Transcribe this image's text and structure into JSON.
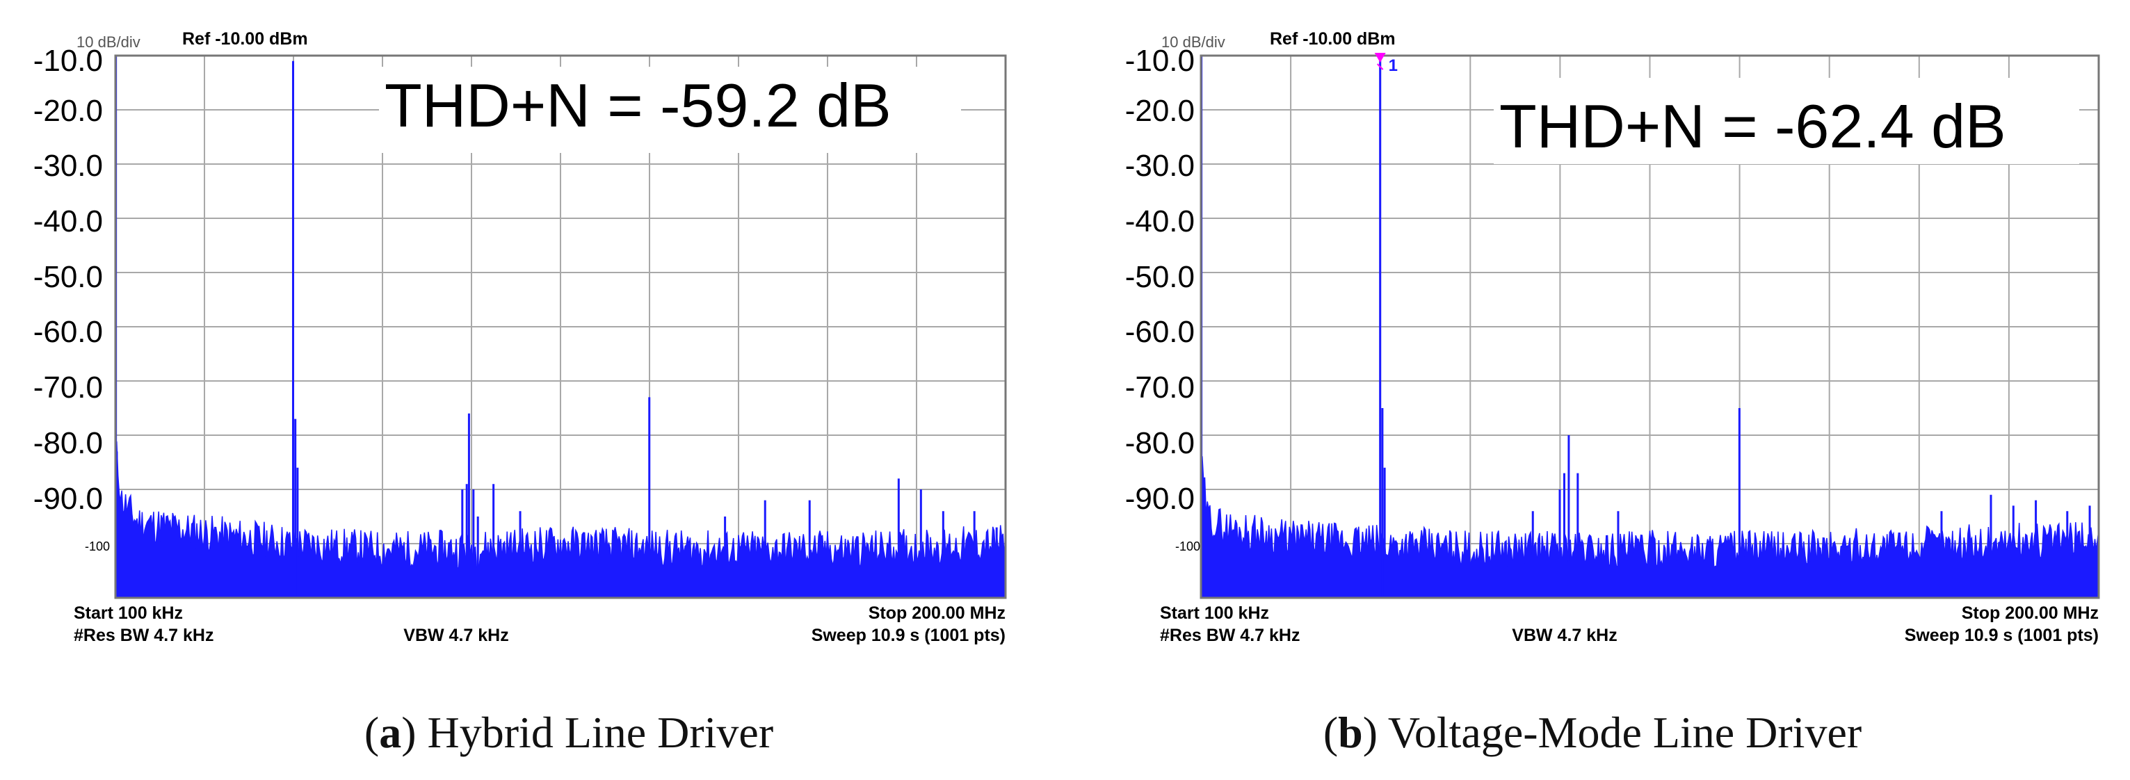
{
  "colors": {
    "trace": "#1a1aff",
    "grid": "#a8a8a8",
    "frame": "#777777",
    "marker": "#ff00ff",
    "text": "#000000"
  },
  "chart_data": [
    {
      "type": "line",
      "panel_letter": "a",
      "caption_text": " Hybrid Line Driver",
      "annotation": "THD+N = -59.2 dB",
      "scale_label": "10 dB/div",
      "ref_label": "Ref -10.00 dBm",
      "ylim": [
        -110,
        -10
      ],
      "xlim": [
        0.1,
        200
      ],
      "x_unit": "MHz",
      "y_unit": "dBm",
      "ytick_labels": [
        "-10.0",
        "-20.0",
        "-30.0",
        "-40.0",
        "-50.0",
        "-60.0",
        "-70.0",
        "-80.0",
        "-90.0",
        "-100"
      ],
      "ytick_values": [
        -10,
        -20,
        -30,
        -40,
        -50,
        -60,
        -70,
        -80,
        -90,
        -100
      ],
      "grid": true,
      "footer": {
        "start": "Start 100 kHz",
        "stop": "Stop 200.00 MHz",
        "rbw": "#Res BW 4.7 kHz",
        "vbw": "VBW 4.7 kHz",
        "sweep": "Sweep  10.9 s (1001 pts)"
      },
      "noise_floor": [
        [
          0.1,
          -82
        ],
        [
          1.5,
          -92
        ],
        [
          5,
          -96
        ],
        [
          20,
          -98
        ],
        [
          40,
          -100
        ],
        [
          60,
          -101
        ],
        [
          80,
          -101
        ],
        [
          100,
          -100
        ],
        [
          130,
          -101
        ],
        [
          170,
          -101
        ],
        [
          200,
          -100
        ]
      ],
      "peaks": [
        {
          "x": 0.2,
          "y": -10
        },
        {
          "x": 0.4,
          "y": -83
        },
        {
          "x": 40,
          "y": -11
        },
        {
          "x": 40.5,
          "y": -77
        },
        {
          "x": 41,
          "y": -86
        },
        {
          "x": 78,
          "y": -90
        },
        {
          "x": 79,
          "y": -89
        },
        {
          "x": 79.5,
          "y": -76
        },
        {
          "x": 80.5,
          "y": -90
        },
        {
          "x": 81.5,
          "y": -95
        },
        {
          "x": 85,
          "y": -89
        },
        {
          "x": 91,
          "y": -94
        },
        {
          "x": 120,
          "y": -73
        },
        {
          "x": 137,
          "y": -95
        },
        {
          "x": 146,
          "y": -92
        },
        {
          "x": 156,
          "y": -92
        },
        {
          "x": 176,
          "y": -88
        },
        {
          "x": 181,
          "y": -90
        },
        {
          "x": 186,
          "y": -94
        },
        {
          "x": 193,
          "y": -94
        },
        {
          "x": 198,
          "y": -97
        }
      ]
    },
    {
      "type": "line",
      "panel_letter": "b",
      "caption_text": " Voltage-Mode Line Driver",
      "annotation": "THD+N = -62.4 dB",
      "scale_label": "10 dB/div",
      "ref_label": "Ref -10.00 dBm",
      "marker_label": "1",
      "marker": {
        "x": 40,
        "y": -10
      },
      "ylim": [
        -110,
        -10
      ],
      "xlim": [
        0.1,
        200
      ],
      "x_unit": "MHz",
      "y_unit": "dBm",
      "ytick_labels": [
        "-10.0",
        "-20.0",
        "-30.0",
        "-40.0",
        "-50.0",
        "-60.0",
        "-70.0",
        "-80.0",
        "-90.0",
        "-100"
      ],
      "ytick_values": [
        -10,
        -20,
        -30,
        -40,
        -50,
        -60,
        -70,
        -80,
        -90,
        -100
      ],
      "grid": true,
      "footer": {
        "start": "Start 100 kHz",
        "stop": "Stop 200.00 MHz",
        "rbw": "#Res BW 4.7 kHz",
        "vbw": "VBW 4.7 kHz",
        "sweep": "Sweep  10.9 s (1001 pts)"
      },
      "noise_floor": [
        [
          0.1,
          -85
        ],
        [
          1.5,
          -95
        ],
        [
          5,
          -97
        ],
        [
          20,
          -99
        ],
        [
          40,
          -100
        ],
        [
          60,
          -101
        ],
        [
          80,
          -101
        ],
        [
          100,
          -101
        ],
        [
          130,
          -101
        ],
        [
          170,
          -100
        ],
        [
          200,
          -99
        ]
      ],
      "peaks": [
        {
          "x": 0.2,
          "y": -10
        },
        {
          "x": 0.4,
          "y": -88
        },
        {
          "x": 40,
          "y": -10
        },
        {
          "x": 40.5,
          "y": -75
        },
        {
          "x": 41,
          "y": -86
        },
        {
          "x": 80,
          "y": -90
        },
        {
          "x": 81,
          "y": -87
        },
        {
          "x": 82,
          "y": -80
        },
        {
          "x": 84,
          "y": -87
        },
        {
          "x": 74,
          "y": -94
        },
        {
          "x": 93,
          "y": -94
        },
        {
          "x": 120,
          "y": -75
        },
        {
          "x": 165,
          "y": -94
        },
        {
          "x": 176,
          "y": -91
        },
        {
          "x": 181,
          "y": -93
        },
        {
          "x": 186,
          "y": -92
        },
        {
          "x": 193,
          "y": -94
        },
        {
          "x": 198,
          "y": -93
        }
      ]
    }
  ]
}
